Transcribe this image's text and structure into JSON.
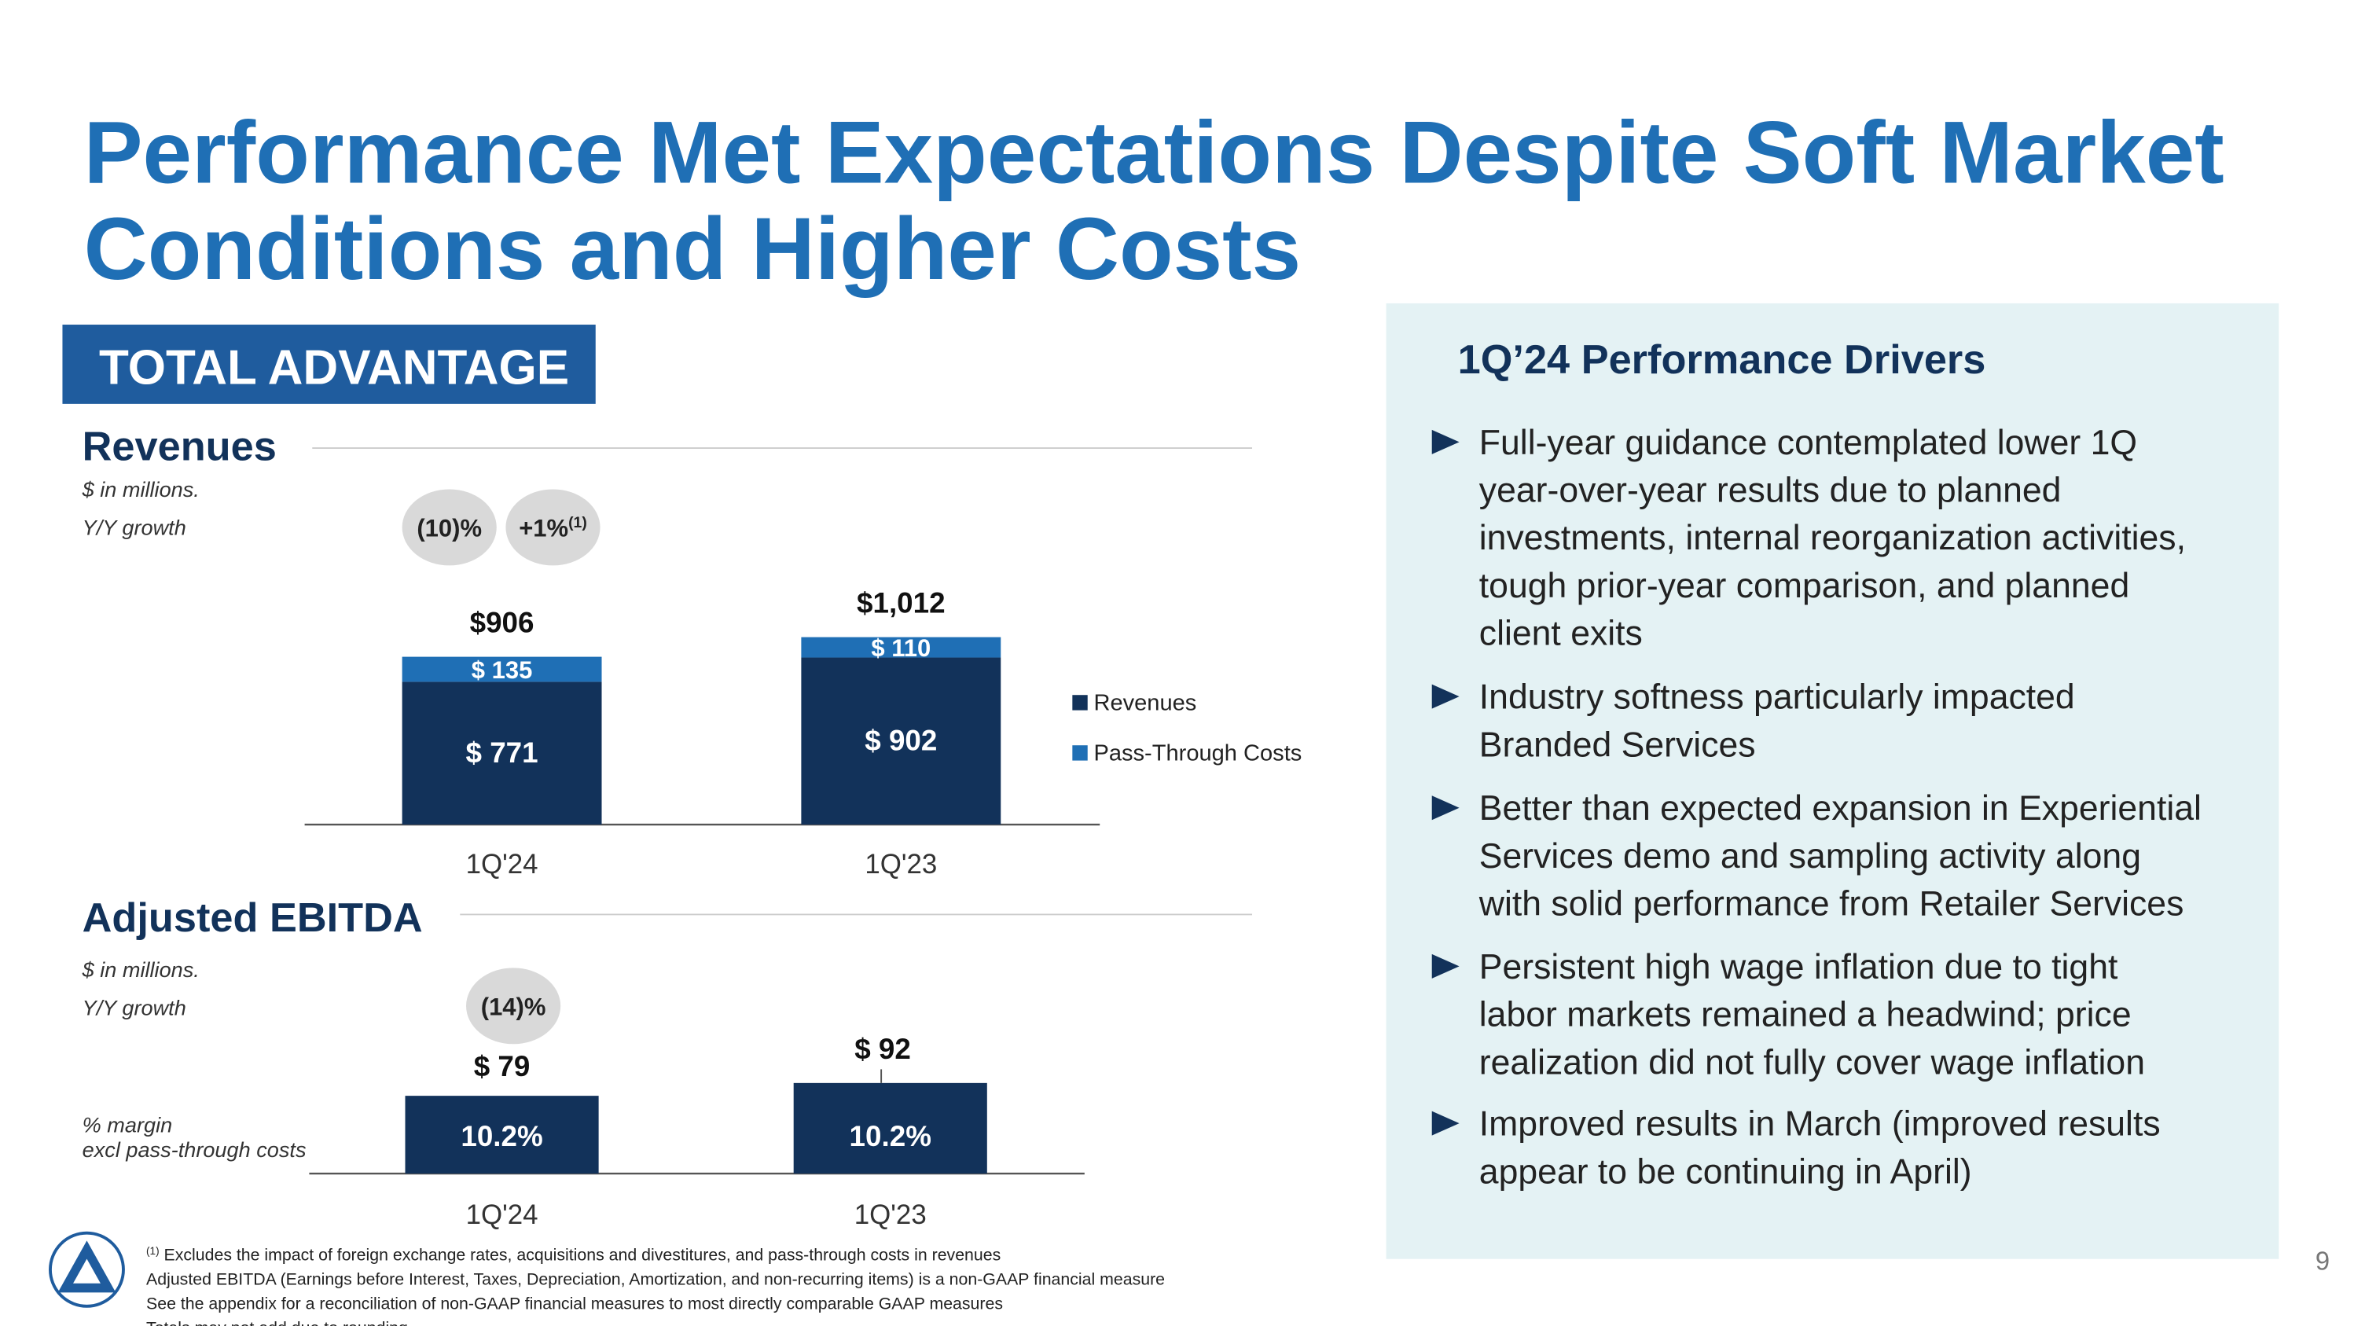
{
  "title_lines": [
    "Performance Met Expectations Despite Soft Market",
    "Conditions and Higher Costs"
  ],
  "badge": "TOTAL ADVANTAGE",
  "chart_data": [
    {
      "type": "stacked-bar",
      "title": "Revenues",
      "subtitle": "$ in millions.",
      "growth_label": "Y/Y growth",
      "growth": [
        {
          "text": "(10)%"
        },
        {
          "text": "+1%",
          "note": "(1)"
        }
      ],
      "categories": [
        "1Q'24",
        "1Q'23"
      ],
      "series": [
        {
          "name": "Revenues",
          "color": "#12325a",
          "values": [
            771,
            902
          ],
          "value_labels": [
            "$ 771",
            "$ 902"
          ]
        },
        {
          "name": "Pass-Through Costs",
          "color": "#1f6fb5",
          "values": [
            135,
            110
          ],
          "value_labels": [
            "$ 135",
            "$ 110"
          ]
        }
      ],
      "totals": [
        906,
        1012
      ],
      "total_labels": [
        "$906",
        "$1,012"
      ]
    },
    {
      "type": "bar",
      "title": "Adjusted EBITDA",
      "subtitle": "$ in millions.",
      "growth_label": "Y/Y growth",
      "growth": [
        {
          "text": "(14)%"
        }
      ],
      "categories": [
        "1Q'24",
        "1Q'23"
      ],
      "color": "#12325a",
      "values": [
        79,
        92
      ],
      "value_labels": [
        "$ 79",
        "$ 92"
      ],
      "margin_label": [
        "% margin",
        "excl pass-through costs"
      ],
      "margins": [
        10.2,
        10.2
      ],
      "margin_labels": [
        "10.2%",
        "10.2%"
      ]
    }
  ],
  "drivers": {
    "title": "1Q’24 Performance Drivers",
    "items": [
      [
        "Full-year guidance contemplated lower 1Q",
        "year-over-year results due to planned",
        "investments, internal reorganization activities,",
        "tough prior-year comparison, and planned",
        "client exits"
      ],
      [
        "Industry softness particularly impacted",
        "Branded Services"
      ],
      [
        "Better than expected expansion in Experiential",
        "Services demo and sampling activity along",
        "with solid performance from Retailer Services"
      ],
      [
        "Persistent high wage inflation due to tight",
        "labor markets remained a headwind; price",
        "realization did not fully cover wage inflation"
      ],
      [
        "Improved results in March (improved results",
        "appear to be continuing in April)"
      ]
    ]
  },
  "footnotes": [
    {
      "note": "(1)",
      "text": " Excludes the impact of foreign exchange rates, acquisitions and divestitures, and pass-through costs in revenues"
    },
    {
      "text": "Adjusted EBITDA (Earnings before Interest, Taxes, Depreciation, Amortization, and non-recurring items) is a non-GAAP financial measure"
    },
    {
      "text": "See the appendix for a reconciliation of non-GAAP financial measures to most directly comparable GAAP measures"
    },
    {
      "text": "Totals may not add due to rounding"
    }
  ],
  "page_number": "9"
}
